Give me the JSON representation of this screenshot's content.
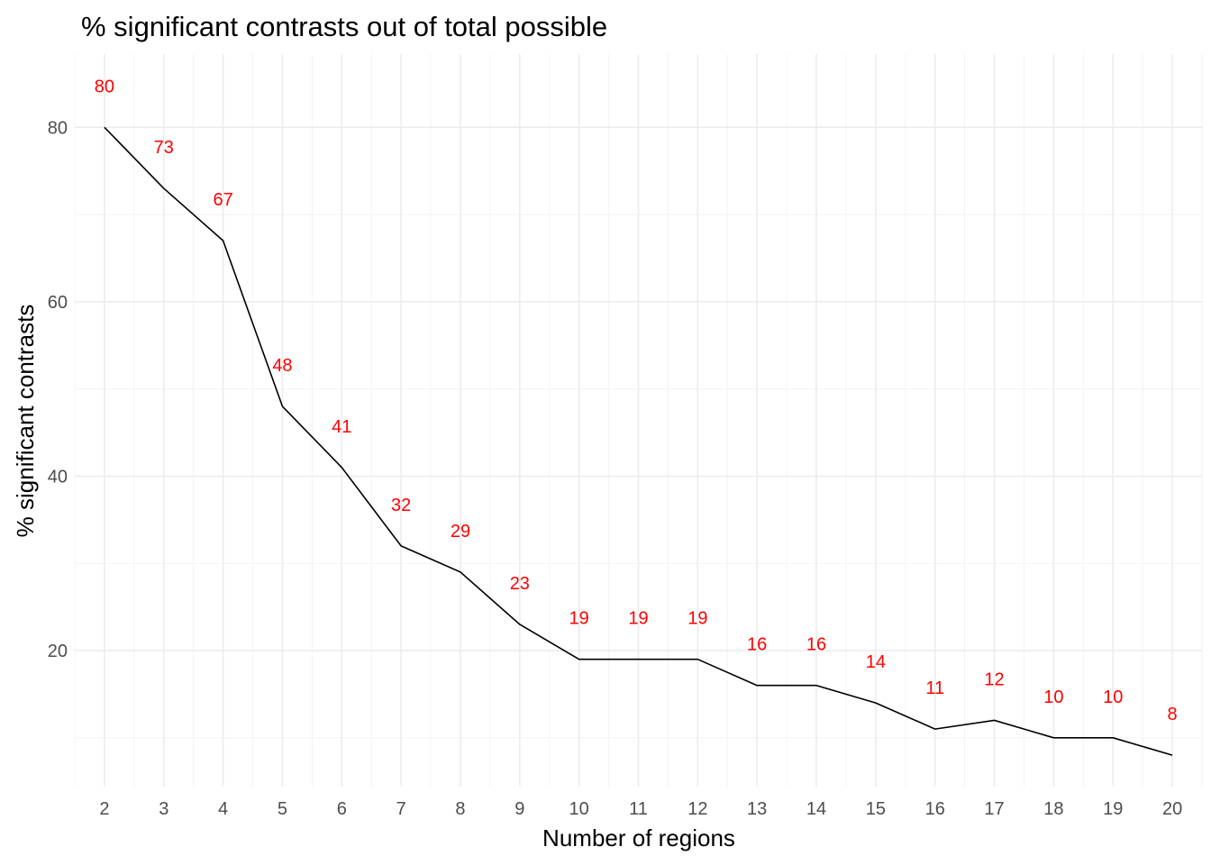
{
  "chart_data": {
    "type": "line",
    "title": "% significant contrasts out of total possible",
    "xlabel": "Number of regions",
    "ylabel": "% significant contrasts",
    "x": [
      2,
      3,
      4,
      5,
      6,
      7,
      8,
      9,
      10,
      11,
      12,
      13,
      14,
      15,
      16,
      17,
      18,
      19,
      20
    ],
    "series": [
      {
        "values": [
          80,
          73,
          67,
          48,
          41,
          32,
          29,
          23,
          19,
          19,
          19,
          16,
          16,
          14,
          11,
          12,
          10,
          10,
          8
        ],
        "labels": [
          "80",
          "73",
          "67",
          "48",
          "41",
          "32",
          "29",
          "23",
          "19",
          "19",
          "19",
          "16",
          "16",
          "14",
          "11",
          "12",
          "10",
          "10",
          "8"
        ]
      }
    ],
    "x_ticks": [
      "2",
      "3",
      "4",
      "5",
      "6",
      "7",
      "8",
      "9",
      "10",
      "11",
      "12",
      "13",
      "14",
      "15",
      "16",
      "17",
      "18",
      "19",
      "20"
    ],
    "y_ticks": [
      "20",
      "40",
      "60",
      "80"
    ],
    "xlim": [
      1.5,
      20.5
    ],
    "ylim": [
      4.4,
      88.4
    ],
    "grid": true,
    "legend": "none",
    "colors": {
      "line": "#000000",
      "labels": "#ff0000",
      "grid": "#ebebeb"
    }
  }
}
